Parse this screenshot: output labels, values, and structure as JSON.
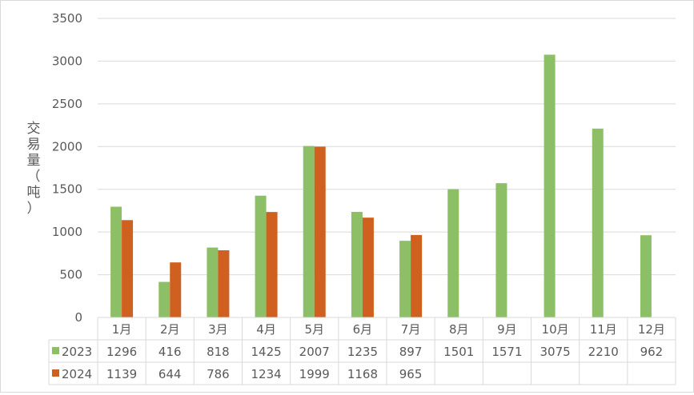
{
  "chart_data": {
    "type": "bar",
    "categories": [
      "1月",
      "2月",
      "3月",
      "4月",
      "5月",
      "6月",
      "7月",
      "8月",
      "9月",
      "10月",
      "11月",
      "12月"
    ],
    "series": [
      {
        "name": "2023",
        "color": "#8dbf67",
        "values": [
          1296,
          416,
          818,
          1425,
          2007,
          1235,
          897,
          1501,
          1571,
          3075,
          2210,
          962
        ]
      },
      {
        "name": "2024",
        "color": "#d0601f",
        "values": [
          1139,
          644,
          786,
          1234,
          1999,
          1168,
          965,
          null,
          null,
          null,
          null,
          null
        ]
      }
    ],
    "ylabel_chars": [
      "交",
      "易",
      "量",
      "（",
      "吨",
      "）"
    ],
    "yticks": [
      0,
      500,
      1000,
      1500,
      2000,
      2500,
      3000,
      3500
    ],
    "ylim": [
      0,
      3500
    ],
    "grid": true,
    "legend": "data-table"
  }
}
